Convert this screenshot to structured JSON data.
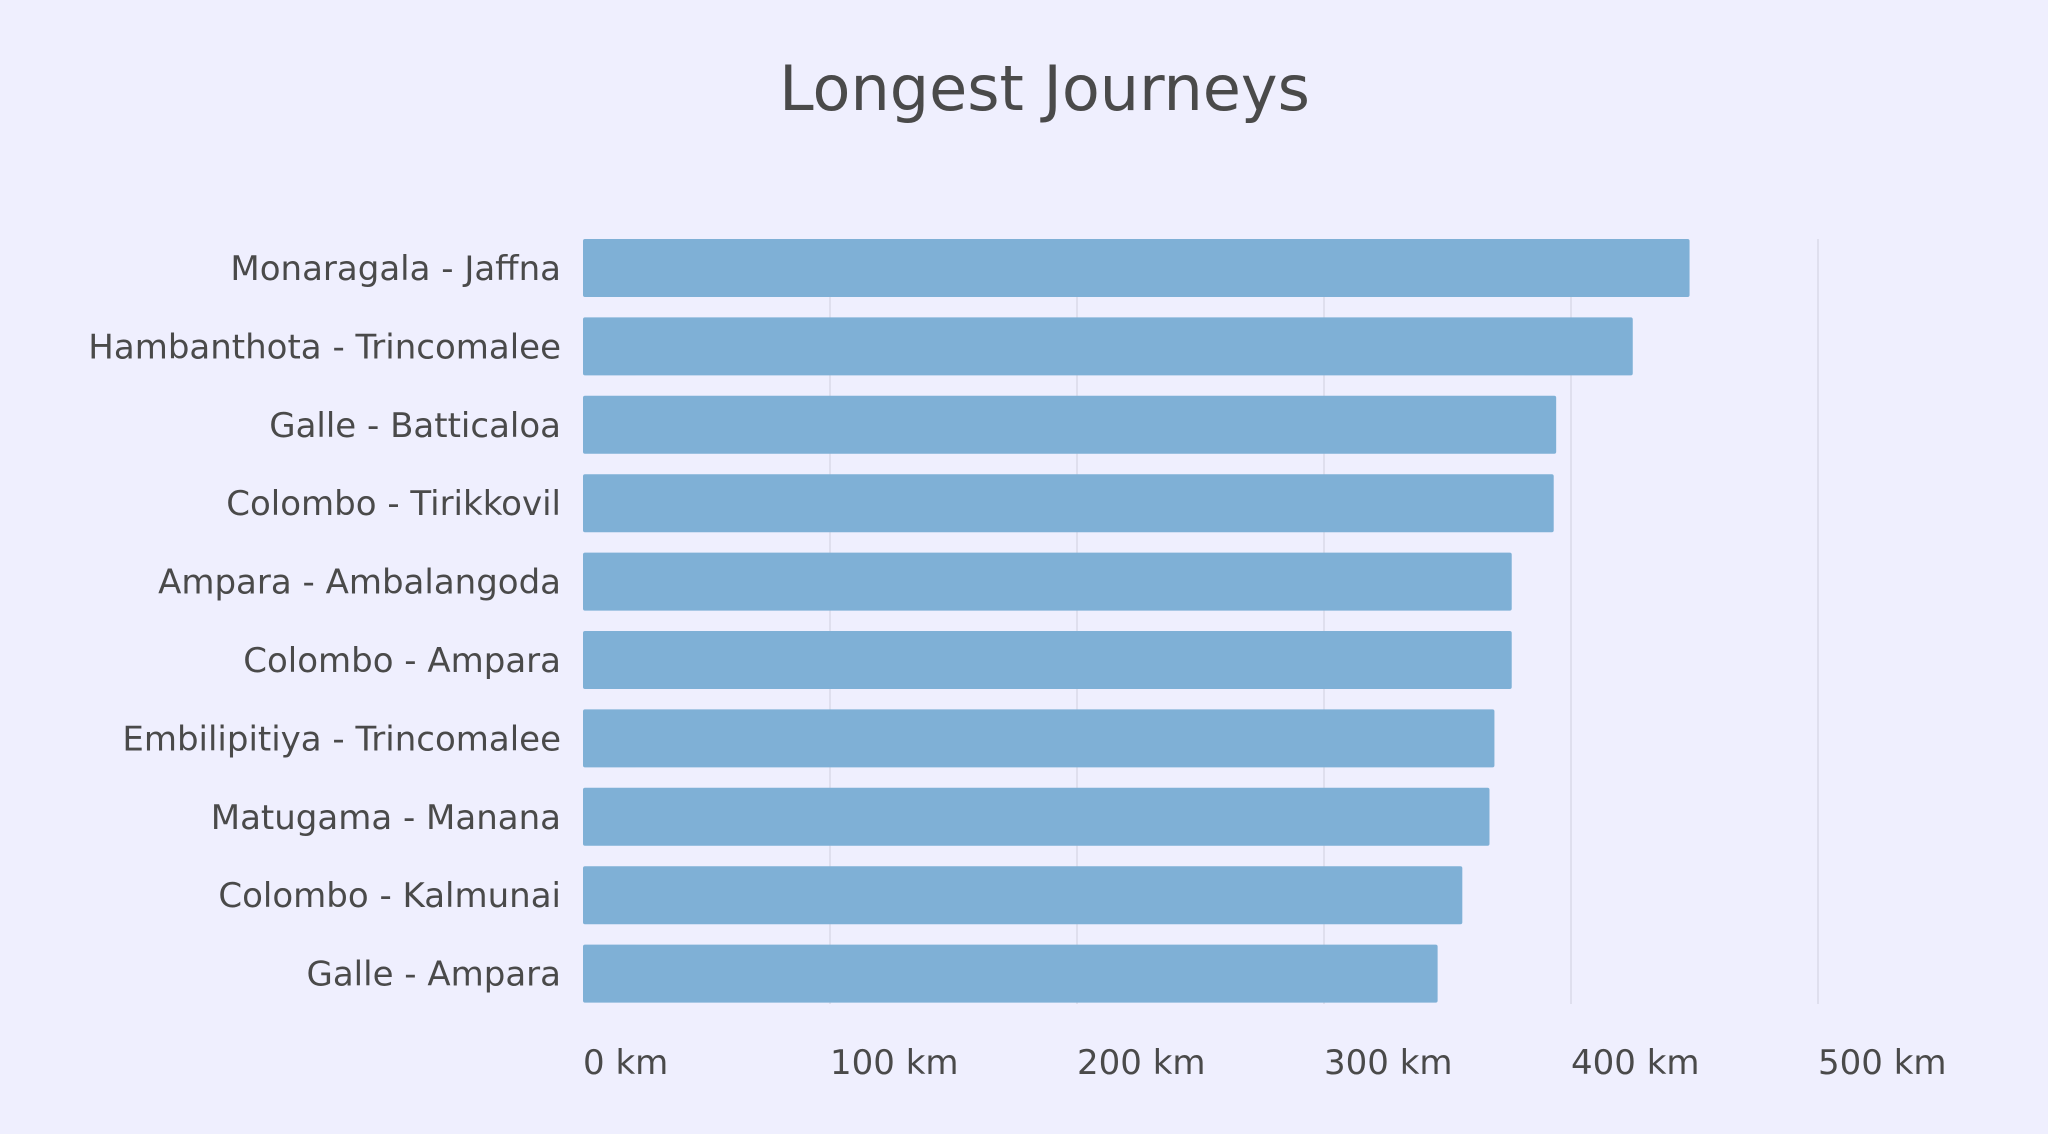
{
  "chart_data": {
    "type": "bar",
    "orientation": "horizontal",
    "title": "Longest Journeys",
    "xlabel": "",
    "ylabel": "",
    "categories": [
      "Monaragala - Jaffna",
      "Hambanthota - Trincomalee",
      "Galle - Batticaloa",
      "Colombo - Tirikkovil",
      "Ampara - Ambalangoda",
      "Colombo - Ampara",
      "Embilipitiya - Trincomalee",
      "Matugama - Manana",
      "Colombo - Kalmunai",
      "Galle - Ampara"
    ],
    "values": [
      448,
      425,
      394,
      393,
      376,
      376,
      369,
      367,
      356,
      346
    ],
    "xlim": [
      0,
      500
    ],
    "xticks": [
      0,
      100,
      200,
      300,
      400,
      500
    ],
    "xtick_labels": [
      "0 km",
      "100 km",
      "200 km",
      "300 km",
      "400 km",
      "500 km"
    ],
    "grid": true,
    "legend": "none",
    "colors": {
      "bar": "#7fb0d6",
      "background": "#efeffe",
      "grid": "#d6d6e6",
      "text": "#4a4a4a"
    }
  }
}
